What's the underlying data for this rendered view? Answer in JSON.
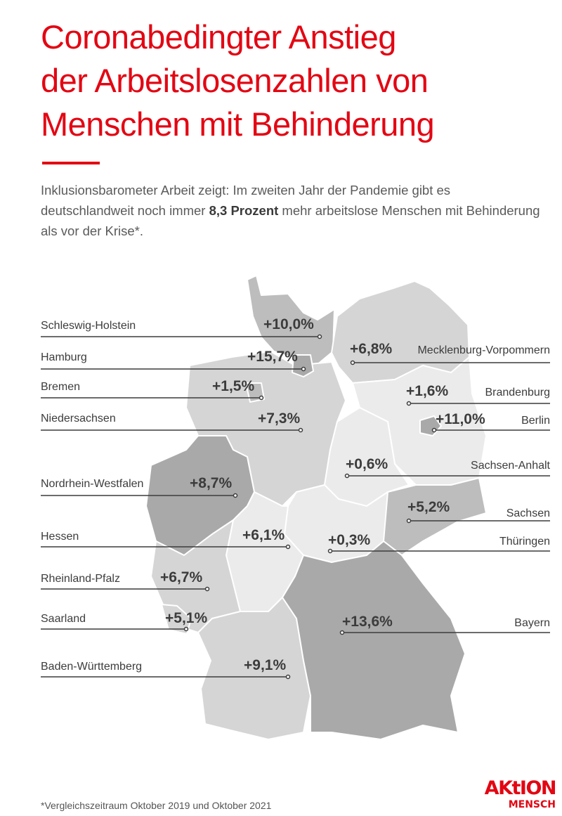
{
  "title_lines": [
    "Coronabedingter Anstieg",
    "der Arbeitslosenzahlen von",
    "Menschen mit Behinderung"
  ],
  "subtitle": {
    "part1": "Inklusionsbarometer Arbeit zeigt: Im zweiten Jahr der Pandemie gibt es deutschlandweit noch immer ",
    "bold": "8,3 Prozent",
    "part2": " mehr arbeitslose Menschen mit Behinderung als vor der Krise*."
  },
  "colors": {
    "accent": "#e30613",
    "darkest": "#a9a9a9",
    "dark": "#bdbdbd",
    "light": "#d5d5d5",
    "lightest": "#ebebeb"
  },
  "regions": [
    {
      "name": "Schleswig-Holstein",
      "value": "+10,0%"
    },
    {
      "name": "Hamburg",
      "value": "+15,7%"
    },
    {
      "name": "Bremen",
      "value": "+1,5%"
    },
    {
      "name": "Niedersachsen",
      "value": "+7,3%"
    },
    {
      "name": "Nordrhein-Westfalen",
      "value": "+8,7%"
    },
    {
      "name": "Hessen",
      "value": "+6,1%"
    },
    {
      "name": "Rheinland-Pfalz",
      "value": "+6,7%"
    },
    {
      "name": "Saarland",
      "value": "+5,1%"
    },
    {
      "name": "Baden-Württemberg",
      "value": "+9,1%"
    },
    {
      "name": "Mecklenburg-Vorpommern",
      "value": "+6,8%"
    },
    {
      "name": "Brandenburg",
      "value": "+1,6%"
    },
    {
      "name": "Berlin",
      "value": "+11,0%"
    },
    {
      "name": "Sachsen-Anhalt",
      "value": "+0,6%"
    },
    {
      "name": "Sachsen",
      "value": "+5,2%"
    },
    {
      "name": "Thüringen",
      "value": "+0,3%"
    },
    {
      "name": "Bayern",
      "value": "+13,6%"
    }
  ],
  "footnote": "*Vergleichszeitraum Oktober 2019 und Oktober 2021",
  "logo": {
    "line1": "AKtion",
    "line2": "MENSCH"
  }
}
